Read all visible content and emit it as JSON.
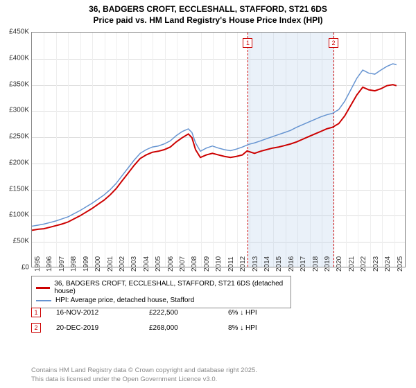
{
  "title_line1": "36, BADGERS CROFT, ECCLESHALL, STAFFORD, ST21 6DS",
  "title_line2": "Price paid vs. HM Land Registry's House Price Index (HPI)",
  "chart": {
    "ylim": [
      0,
      450000
    ],
    "ytick_step": 50000,
    "yticks": [
      "£0",
      "£50K",
      "£100K",
      "£150K",
      "£200K",
      "£250K",
      "£300K",
      "£350K",
      "£400K",
      "£450K"
    ],
    "xlim": [
      1995,
      2026
    ],
    "xticks": [
      "1995",
      "1996",
      "1997",
      "1998",
      "1999",
      "2000",
      "2001",
      "2002",
      "2003",
      "2004",
      "2005",
      "2006",
      "2007",
      "2008",
      "2009",
      "2010",
      "2011",
      "2012",
      "2013",
      "2014",
      "2015",
      "2016",
      "2017",
      "2018",
      "2019",
      "2020",
      "2021",
      "2022",
      "2023",
      "2024",
      "2025"
    ],
    "background_color": "#ffffff",
    "grid_color": "#dddddd",
    "shade_start": 2012.88,
    "shade_end": 2019.97,
    "markers": [
      {
        "x": 2012.88,
        "label": "1",
        "color": "#cc0000"
      },
      {
        "x": 2019.97,
        "label": "2",
        "color": "#cc0000"
      }
    ],
    "series": [
      {
        "name": "36, BADGERS CROFT, ECCLESHALL, STAFFORD, ST21 6DS (detached house)",
        "color": "#cc0000",
        "width": 2,
        "points": [
          [
            1995,
            70000
          ],
          [
            1995.5,
            72000
          ],
          [
            1996,
            73000
          ],
          [
            1996.5,
            76000
          ],
          [
            1997,
            79000
          ],
          [
            1997.5,
            82000
          ],
          [
            1998,
            86000
          ],
          [
            1998.5,
            92000
          ],
          [
            1999,
            98000
          ],
          [
            1999.5,
            105000
          ],
          [
            2000,
            112000
          ],
          [
            2000.5,
            120000
          ],
          [
            2001,
            128000
          ],
          [
            2001.5,
            138000
          ],
          [
            2002,
            150000
          ],
          [
            2002.5,
            165000
          ],
          [
            2003,
            180000
          ],
          [
            2003.5,
            195000
          ],
          [
            2004,
            208000
          ],
          [
            2004.5,
            215000
          ],
          [
            2005,
            220000
          ],
          [
            2005.5,
            222000
          ],
          [
            2006,
            225000
          ],
          [
            2006.5,
            230000
          ],
          [
            2007,
            240000
          ],
          [
            2007.5,
            248000
          ],
          [
            2008,
            255000
          ],
          [
            2008.3,
            248000
          ],
          [
            2008.6,
            225000
          ],
          [
            2009,
            210000
          ],
          [
            2009.5,
            215000
          ],
          [
            2010,
            218000
          ],
          [
            2010.5,
            215000
          ],
          [
            2011,
            212000
          ],
          [
            2011.5,
            210000
          ],
          [
            2012,
            212000
          ],
          [
            2012.5,
            215000
          ],
          [
            2012.88,
            222500
          ],
          [
            2013.5,
            218000
          ],
          [
            2014,
            222000
          ],
          [
            2014.5,
            225000
          ],
          [
            2015,
            228000
          ],
          [
            2015.5,
            230000
          ],
          [
            2016,
            233000
          ],
          [
            2016.5,
            236000
          ],
          [
            2017,
            240000
          ],
          [
            2017.5,
            245000
          ],
          [
            2018,
            250000
          ],
          [
            2018.5,
            255000
          ],
          [
            2019,
            260000
          ],
          [
            2019.5,
            265000
          ],
          [
            2019.97,
            268000
          ],
          [
            2020.5,
            275000
          ],
          [
            2021,
            290000
          ],
          [
            2021.5,
            310000
          ],
          [
            2022,
            330000
          ],
          [
            2022.5,
            345000
          ],
          [
            2023,
            340000
          ],
          [
            2023.5,
            338000
          ],
          [
            2024,
            342000
          ],
          [
            2024.5,
            348000
          ],
          [
            2025,
            350000
          ],
          [
            2025.3,
            348000
          ]
        ]
      },
      {
        "name": "HPI: Average price, detached house, Stafford",
        "color": "#6694d1",
        "width": 1.5,
        "points": [
          [
            1995,
            78000
          ],
          [
            1995.5,
            80000
          ],
          [
            1996,
            82000
          ],
          [
            1996.5,
            85000
          ],
          [
            1997,
            88000
          ],
          [
            1997.5,
            92000
          ],
          [
            1998,
            96000
          ],
          [
            1998.5,
            102000
          ],
          [
            1999,
            108000
          ],
          [
            1999.5,
            115000
          ],
          [
            2000,
            122000
          ],
          [
            2000.5,
            130000
          ],
          [
            2001,
            138000
          ],
          [
            2001.5,
            148000
          ],
          [
            2002,
            160000
          ],
          [
            2002.5,
            175000
          ],
          [
            2003,
            190000
          ],
          [
            2003.5,
            205000
          ],
          [
            2004,
            218000
          ],
          [
            2004.5,
            225000
          ],
          [
            2005,
            230000
          ],
          [
            2005.5,
            232000
          ],
          [
            2006,
            236000
          ],
          [
            2006.5,
            242000
          ],
          [
            2007,
            252000
          ],
          [
            2007.5,
            260000
          ],
          [
            2008,
            265000
          ],
          [
            2008.3,
            258000
          ],
          [
            2008.6,
            238000
          ],
          [
            2009,
            222000
          ],
          [
            2009.5,
            228000
          ],
          [
            2010,
            232000
          ],
          [
            2010.5,
            228000
          ],
          [
            2011,
            225000
          ],
          [
            2011.5,
            223000
          ],
          [
            2012,
            226000
          ],
          [
            2012.5,
            230000
          ],
          [
            2013,
            235000
          ],
          [
            2013.5,
            238000
          ],
          [
            2014,
            242000
          ],
          [
            2014.5,
            246000
          ],
          [
            2015,
            250000
          ],
          [
            2015.5,
            254000
          ],
          [
            2016,
            258000
          ],
          [
            2016.5,
            262000
          ],
          [
            2017,
            268000
          ],
          [
            2017.5,
            273000
          ],
          [
            2018,
            278000
          ],
          [
            2018.5,
            283000
          ],
          [
            2019,
            288000
          ],
          [
            2019.5,
            292000
          ],
          [
            2020,
            295000
          ],
          [
            2020.5,
            302000
          ],
          [
            2021,
            318000
          ],
          [
            2021.5,
            340000
          ],
          [
            2022,
            362000
          ],
          [
            2022.5,
            378000
          ],
          [
            2023,
            372000
          ],
          [
            2023.5,
            370000
          ],
          [
            2024,
            378000
          ],
          [
            2024.5,
            385000
          ],
          [
            2025,
            390000
          ],
          [
            2025.3,
            388000
          ]
        ]
      }
    ]
  },
  "legend": [
    {
      "color": "#cc0000",
      "width": 3,
      "label": "36, BADGERS CROFT, ECCLESHALL, STAFFORD, ST21 6DS (detached house)"
    },
    {
      "color": "#6694d1",
      "width": 2,
      "label": "HPI: Average price, detached house, Stafford"
    }
  ],
  "table": [
    {
      "marker": "1",
      "marker_color": "#cc0000",
      "date": "16-NOV-2012",
      "price": "£222,500",
      "delta": "6% ↓ HPI"
    },
    {
      "marker": "2",
      "marker_color": "#cc0000",
      "date": "20-DEC-2019",
      "price": "£268,000",
      "delta": "8% ↓ HPI"
    }
  ],
  "footer_line1": "Contains HM Land Registry data © Crown copyright and database right 2025.",
  "footer_line2": "This data is licensed under the Open Government Licence v3.0."
}
